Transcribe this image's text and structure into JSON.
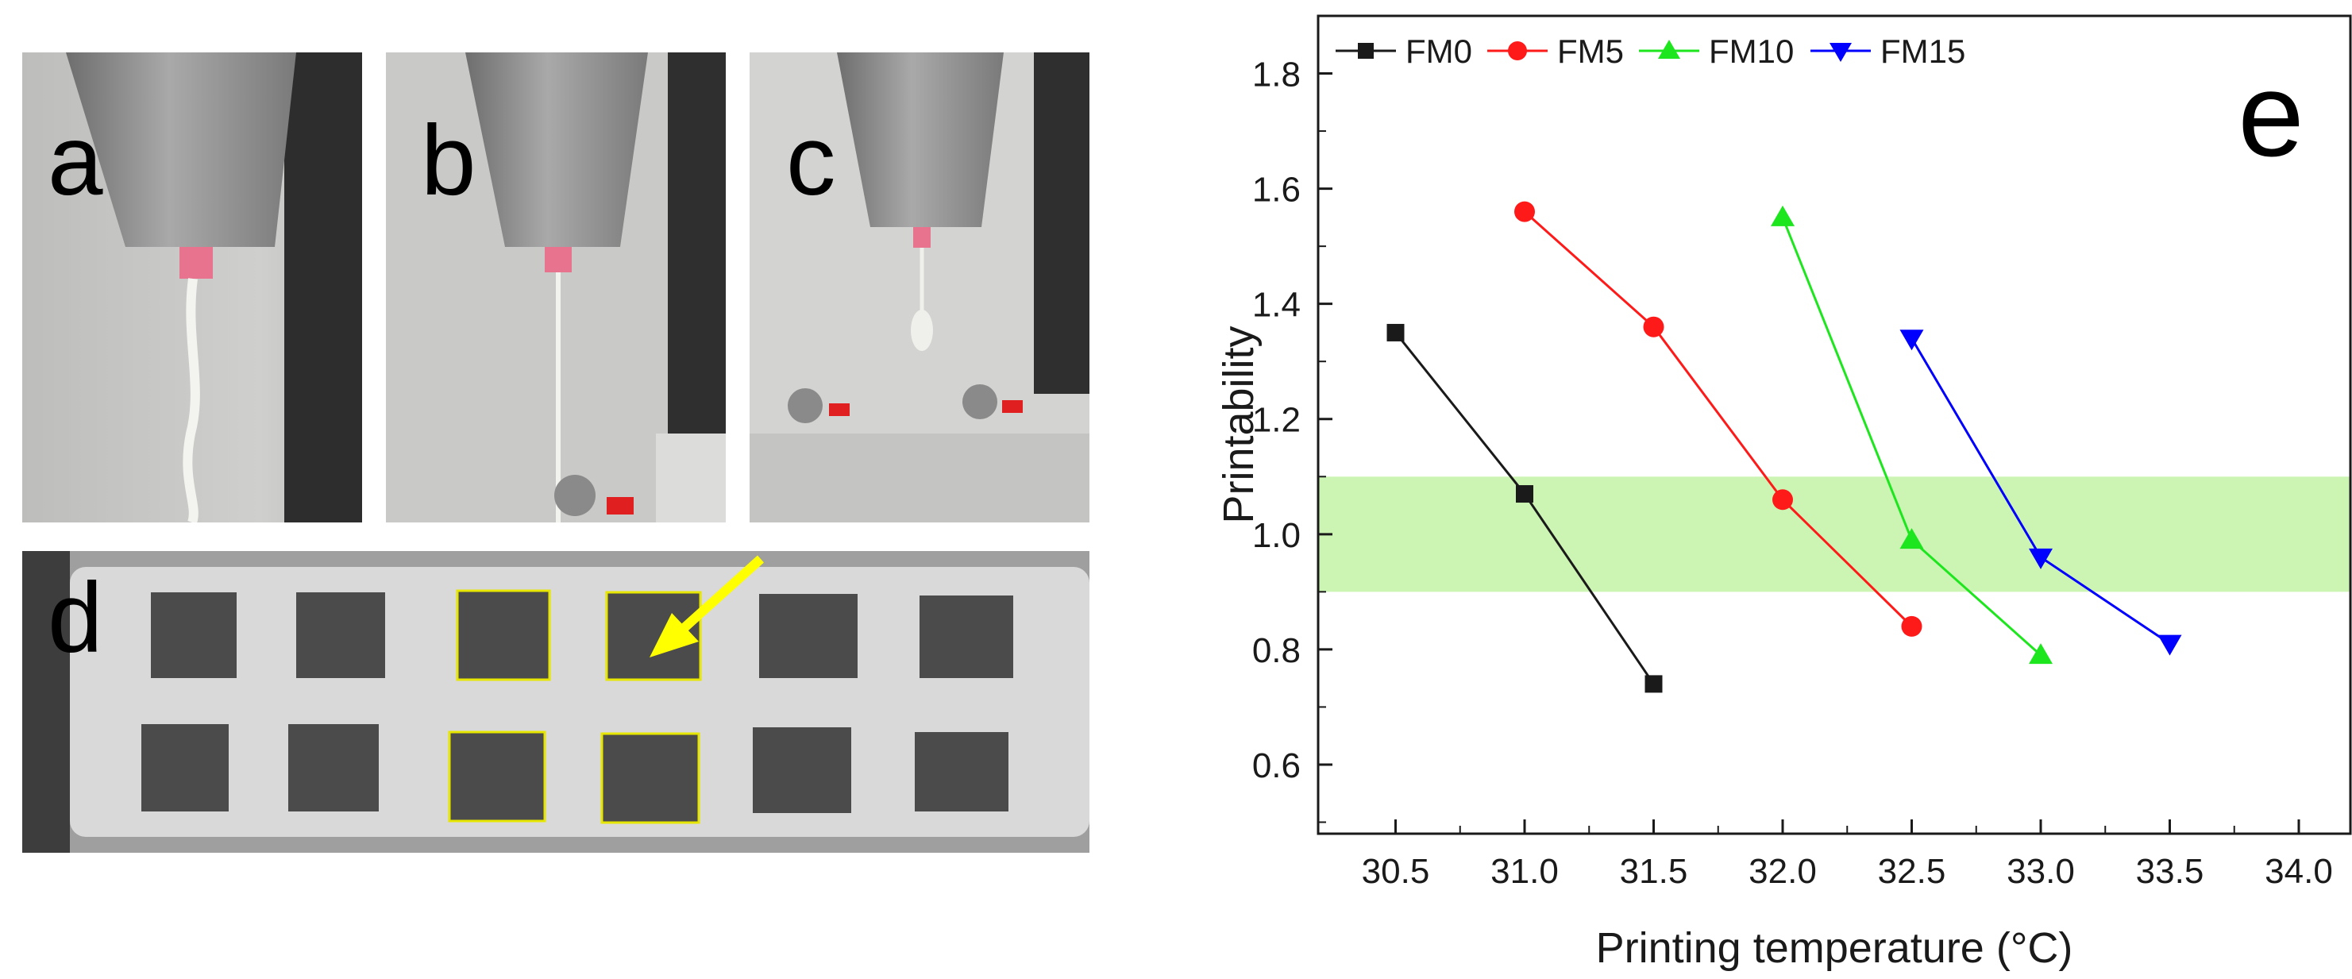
{
  "panels": {
    "a": "a",
    "b": "b",
    "c": "c",
    "d": "d",
    "e": "e"
  },
  "chart_data": {
    "type": "line",
    "title": "",
    "xlabel": "Printing temperature (°C)",
    "ylabel": "Printability",
    "xlim": [
      30.2,
      34.2
    ],
    "ylim": [
      0.48,
      1.9
    ],
    "xticks": [
      "30.5",
      "31.0",
      "31.5",
      "32.0",
      "32.5",
      "33.0",
      "33.5",
      "34.0"
    ],
    "yticks": [
      "0.6",
      "0.8",
      "1.0",
      "1.2",
      "1.4",
      "1.6",
      "1.8"
    ],
    "band": {
      "from": 0.9,
      "to": 1.1,
      "color": "#ccf5b3"
    },
    "legend_position": "top",
    "grid": false,
    "series": [
      {
        "name": "FM0",
        "color": "#1a1a1a",
        "marker": "square",
        "x": [
          30.5,
          31.0,
          31.5
        ],
        "y": [
          1.35,
          1.07,
          0.74
        ]
      },
      {
        "name": "FM5",
        "color": "#ff1a1a",
        "marker": "circle",
        "x": [
          31.0,
          31.5,
          32.0,
          32.5
        ],
        "y": [
          1.56,
          1.36,
          1.06,
          0.84
        ]
      },
      {
        "name": "FM10",
        "color": "#1ee61e",
        "marker": "triangle-up",
        "x": [
          32.0,
          32.5,
          33.0
        ],
        "y": [
          1.55,
          0.99,
          0.79
        ]
      },
      {
        "name": "FM15",
        "color": "#0000ff",
        "marker": "triangle-down",
        "x": [
          32.5,
          33.0,
          33.5
        ],
        "y": [
          1.34,
          0.96,
          0.81
        ]
      }
    ]
  }
}
